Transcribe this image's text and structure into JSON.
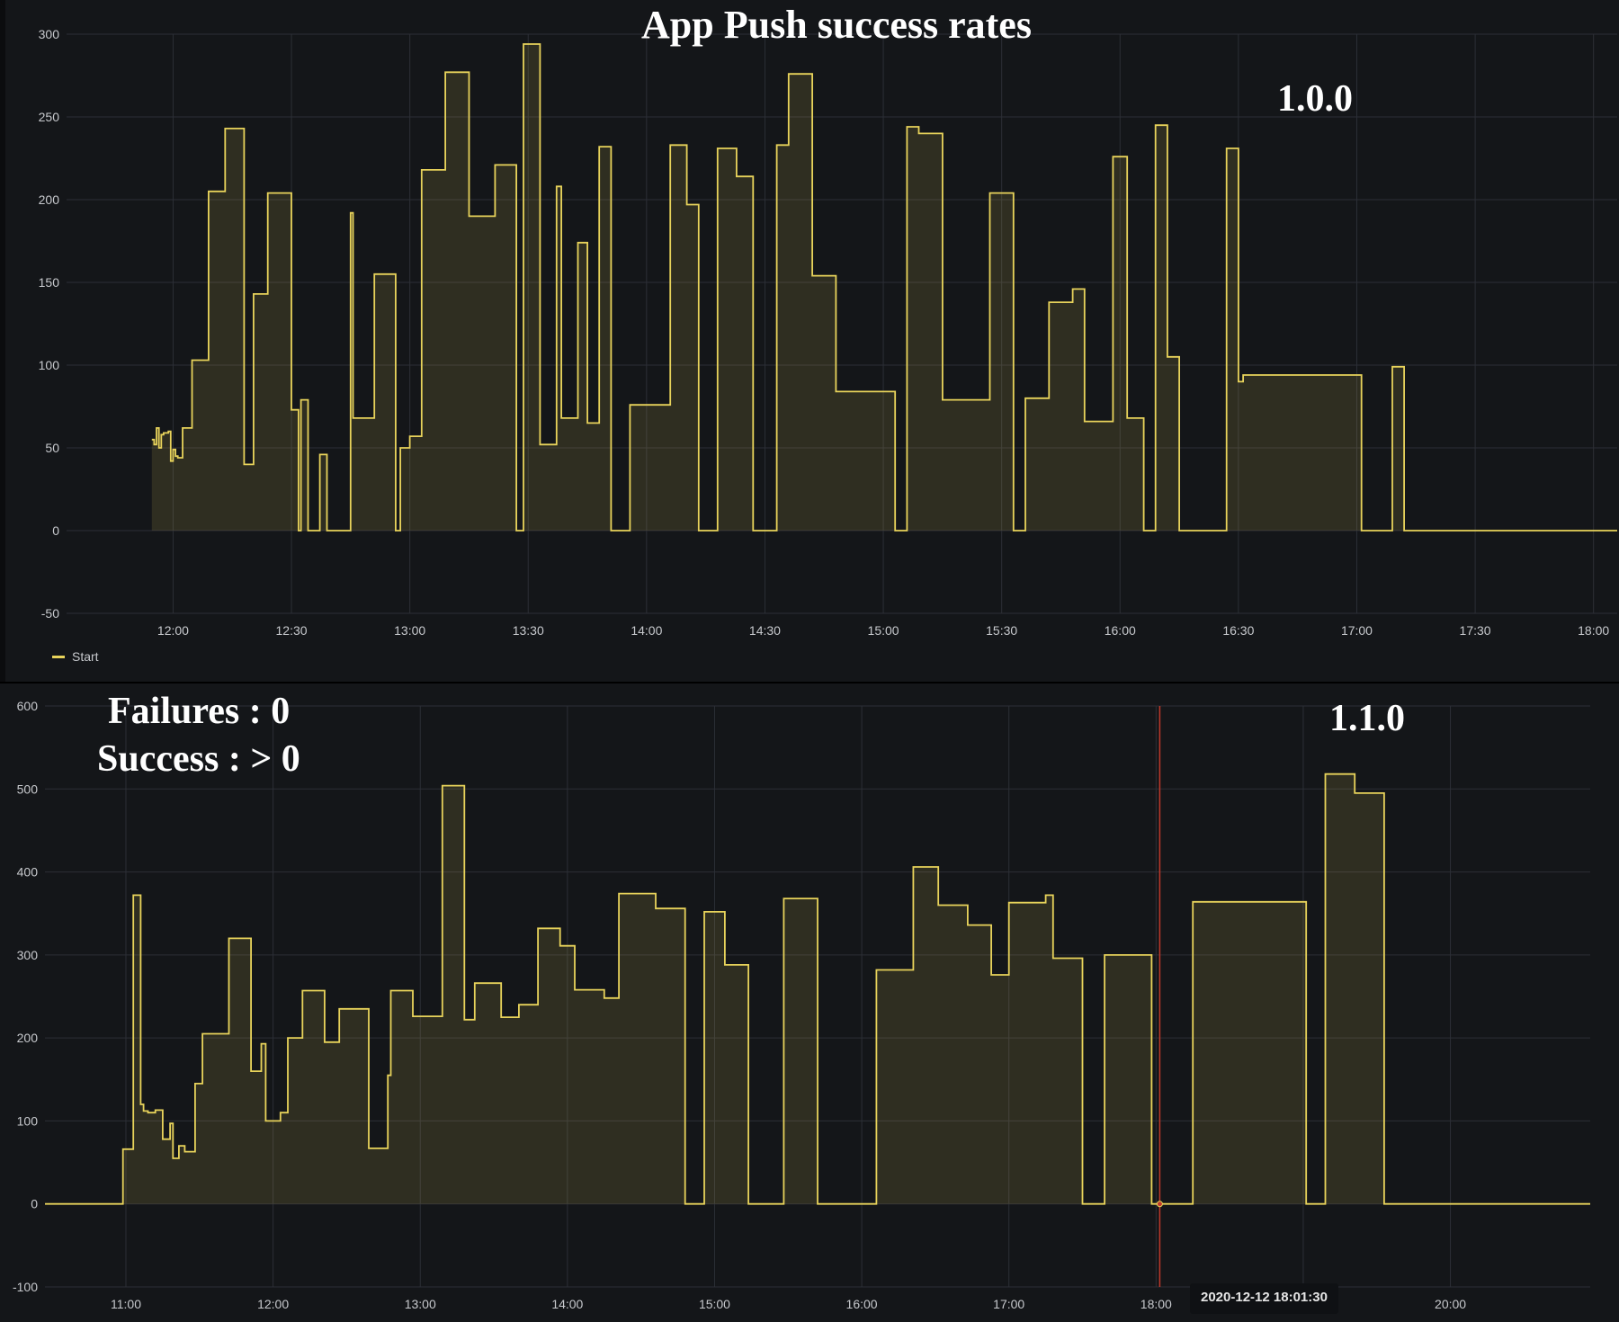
{
  "annotations": {
    "title": "App Push success rates",
    "version_top": "1.0.0",
    "version_bottom": "1.1.0",
    "note_failures": "Failures : 0",
    "note_success": "Success : > 0"
  },
  "tooltip": {
    "time": "2020-12-12 18:01:30"
  },
  "colors": {
    "series": "#e8d35b",
    "background": "#141619",
    "grid": "#2c2f36",
    "marker": "#c0392b"
  },
  "chart_data": [
    {
      "type": "area",
      "title": "App Push success rates",
      "annotation": "1.0.0",
      "x_unit": "hours",
      "xlim": [
        11.55,
        18.1
      ],
      "ylim": [
        -50,
        300
      ],
      "y_ticks": [
        300,
        250,
        200,
        150,
        100,
        50,
        0,
        -50
      ],
      "x_tick_labels": [
        "12:00",
        "12:30",
        "13:00",
        "13:30",
        "14:00",
        "14:30",
        "15:00",
        "15:30",
        "16:00",
        "16:30",
        "17:00",
        "17:30",
        "18:00"
      ],
      "x_tick_values": [
        12,
        12.5,
        13,
        13.5,
        14,
        14.5,
        15,
        15.5,
        16,
        16.5,
        17,
        17.5,
        18
      ],
      "legend": {
        "position": "bottom-left",
        "entries": [
          "Start"
        ]
      },
      "grid": true,
      "series": [
        {
          "name": "Start",
          "step": true,
          "x": [
            11.91,
            11.92,
            11.93,
            11.94,
            11.95,
            11.96,
            11.98,
            11.99,
            12.0,
            12.01,
            12.02,
            12.04,
            12.06,
            12.08,
            12.1,
            12.15,
            12.22,
            12.3,
            12.34,
            12.4,
            12.5,
            12.53,
            12.54,
            12.57,
            12.62,
            12.65,
            12.73,
            12.75,
            12.76,
            12.85,
            12.94,
            12.96,
            13.0,
            13.05,
            13.15,
            13.25,
            13.36,
            13.45,
            13.48,
            13.55,
            13.62,
            13.64,
            13.71,
            13.75,
            13.8,
            13.85,
            13.93,
            14.1,
            14.17,
            14.22,
            14.3,
            14.38,
            14.45,
            14.55,
            14.6,
            14.7,
            14.8,
            15.05,
            15.1,
            15.15,
            15.25,
            15.45,
            15.55,
            15.6,
            15.7,
            15.8,
            15.85,
            15.97,
            16.03,
            16.1,
            16.15,
            16.2,
            16.25,
            16.3,
            16.45,
            16.5,
            16.52,
            17.02,
            17.05,
            17.1,
            17.15,
            17.2,
            17.3,
            17.7,
            17.8,
            17.82,
            17.85,
            18.1
          ],
          "y": [
            55,
            52,
            62,
            50,
            58,
            59,
            60,
            42,
            49,
            45,
            44,
            62,
            62,
            103,
            103,
            205,
            243,
            40,
            143,
            204,
            73,
            0,
            79,
            0,
            46,
            0,
            0,
            192,
            68,
            155,
            0,
            50,
            57,
            218,
            277,
            190,
            221,
            0,
            294,
            52,
            208,
            68,
            174,
            65,
            232,
            0,
            76,
            233,
            197,
            0,
            231,
            214,
            0,
            233,
            276,
            154,
            84,
            0,
            244,
            240,
            79,
            204,
            0,
            80,
            138,
            146,
            66,
            226,
            68,
            0,
            245,
            105,
            0,
            0,
            231,
            90,
            94,
            0,
            0,
            0,
            99,
            0,
            0,
            0,
            0,
            0,
            0,
            0
          ]
        }
      ]
    },
    {
      "type": "area",
      "annotation": "1.1.0",
      "x_unit": "hours",
      "xlim": [
        10.45,
        20.95
      ],
      "ylim": [
        -100,
        600
      ],
      "y_ticks": [
        600,
        500,
        400,
        300,
        200,
        100,
        0,
        -100
      ],
      "x_tick_labels": [
        "11:00",
        "12:00",
        "13:00",
        "14:00",
        "15:00",
        "16:00",
        "17:00",
        "18:00",
        "19:00",
        "20:00"
      ],
      "x_tick_values": [
        11,
        12,
        13,
        14,
        15,
        16,
        17,
        18,
        19,
        20
      ],
      "marker_x": 18.025,
      "grid": true,
      "series": [
        {
          "step": true,
          "x": [
            10.45,
            10.98,
            11.05,
            11.1,
            11.12,
            11.15,
            11.2,
            11.25,
            11.3,
            11.32,
            11.36,
            11.4,
            11.45,
            11.47,
            11.52,
            11.58,
            11.7,
            11.85,
            11.92,
            11.95,
            12.05,
            12.1,
            12.2,
            12.35,
            12.45,
            12.65,
            12.78,
            12.8,
            12.85,
            12.95,
            13.05,
            13.15,
            13.3,
            13.37,
            13.55,
            13.67,
            13.7,
            13.8,
            13.95,
            14.05,
            14.25,
            14.35,
            14.6,
            14.8,
            14.93,
            15.07,
            15.23,
            15.32,
            15.47,
            15.7,
            15.78,
            15.88,
            16.1,
            16.35,
            16.52,
            16.72,
            16.88,
            17.0,
            17.25,
            17.3,
            17.5,
            17.65,
            17.72,
            17.97,
            18.05,
            18.15,
            18.25,
            19.02,
            19.15,
            19.35,
            19.55,
            19.65,
            20.05,
            20.95
          ],
          "y": [
            0,
            66,
            372,
            120,
            112,
            110,
            113,
            78,
            97,
            55,
            70,
            63,
            63,
            145,
            205,
            205,
            320,
            160,
            193,
            100,
            110,
            200,
            257,
            195,
            235,
            67,
            155,
            257,
            257,
            226,
            226,
            504,
            222,
            266,
            225,
            240,
            240,
            332,
            311,
            258,
            248,
            374,
            356,
            0,
            352,
            288,
            0,
            0,
            368,
            0,
            0,
            0,
            282,
            406,
            360,
            336,
            276,
            363,
            372,
            296,
            0,
            300,
            300,
            0,
            0,
            0,
            364,
            0,
            518,
            495,
            0,
            0,
            0,
            0
          ]
        }
      ]
    }
  ]
}
